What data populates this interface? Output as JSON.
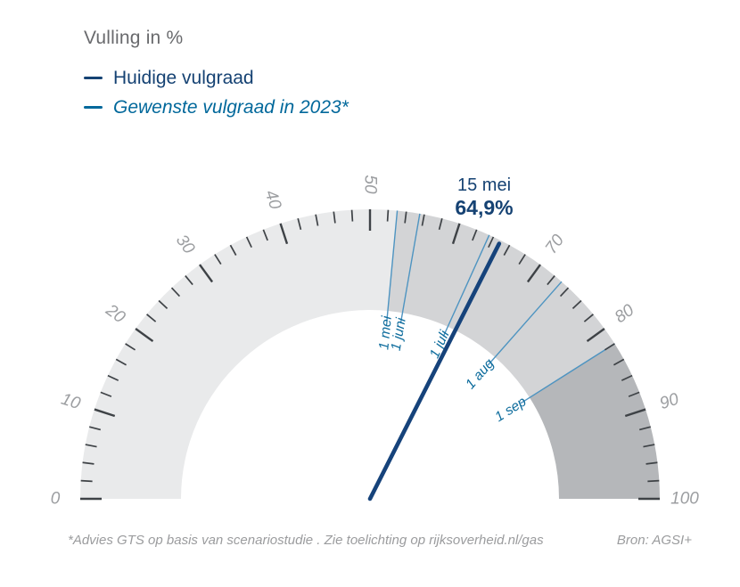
{
  "title": "Vulling in %",
  "legend": {
    "items": [
      {
        "label": "Huidige vulgraad",
        "color": "#154273",
        "italic": false
      },
      {
        "label": "Gewenste vulgraad in 2023*",
        "color": "#01689b",
        "italic": true
      }
    ]
  },
  "footer": {
    "footnote": "*Advies GTS op basis van scenariostudie . Zie toelichting op rijksoverheid.nl/gas",
    "source": "Bron: AGSI+"
  },
  "chart_data": {
    "type": "gauge",
    "min": 0,
    "max": 100,
    "angle_span_deg": 180,
    "unit": "%",
    "tick_minor_step": 2,
    "tick_major_step": 10,
    "tick_labels": [
      0,
      10,
      20,
      30,
      40,
      50,
      70,
      80,
      90,
      100
    ],
    "current": {
      "date_label": "15 mei",
      "value": 64.9,
      "value_label": "64,9%"
    },
    "targets": [
      {
        "label": "1 mei",
        "value": 53
      },
      {
        "label": "1 juni",
        "value": 55.5
      },
      {
        "label": "1 juli",
        "value": 63.5
      },
      {
        "label": "1 aug",
        "value": 73
      },
      {
        "label": "1 sep",
        "value": 82
      }
    ],
    "segments": [
      {
        "from": 0,
        "to": 53,
        "color": "#e9eaeb"
      },
      {
        "from": 53,
        "to": 82,
        "color": "#d3d4d6"
      },
      {
        "from": 82,
        "to": 100,
        "color": "#b5b7ba"
      }
    ],
    "colors": {
      "needle": "#16437b",
      "annotation": "#154273",
      "target_line": "#4e94c1",
      "target_text": "#0c6b9c",
      "tick": "#3e4246",
      "tick_label": "#9c9ea1"
    }
  }
}
